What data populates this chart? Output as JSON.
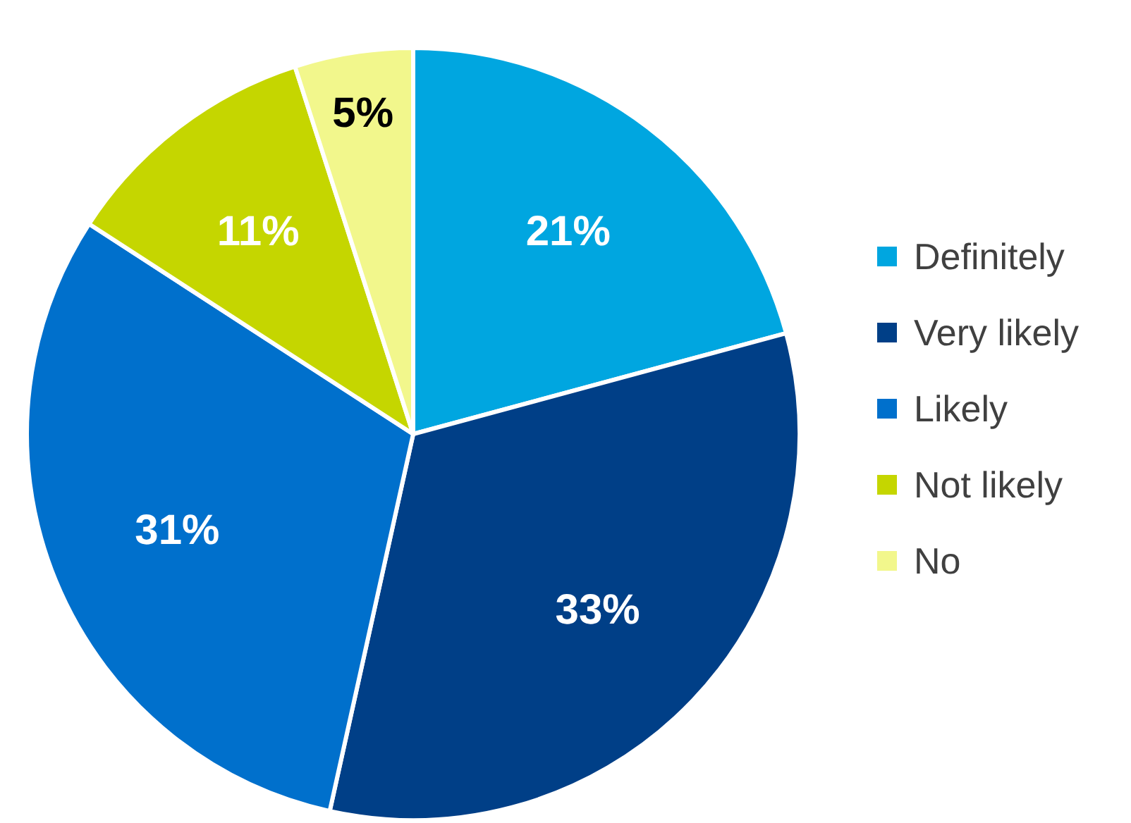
{
  "chart_data": {
    "type": "pie",
    "categories": [
      "Definitely",
      "Very likely",
      "Likely",
      "Not likely",
      "No"
    ],
    "values": [
      21,
      33,
      31,
      11,
      5
    ],
    "colors": [
      "#00a6e0",
      "#003f87",
      "#0070cc",
      "#c5d600",
      "#f2f78c"
    ],
    "value_labels": [
      "21%",
      "33%",
      "31%",
      "11%",
      "5%"
    ],
    "legend": "right"
  }
}
